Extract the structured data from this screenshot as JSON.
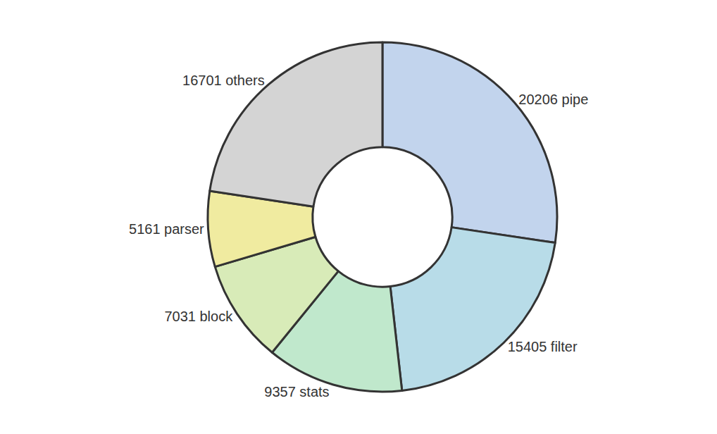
{
  "chart_data": {
    "type": "donut",
    "categories": [
      "20206 pipe",
      "15405 filter",
      "9357 stats",
      "7031 block",
      "5161 parser",
      "16701 others"
    ],
    "values": [
      20206,
      15405,
      9357,
      7031,
      5161,
      16701
    ],
    "colors": [
      "#c2d4ed",
      "#b8dce8",
      "#c0e8cc",
      "#d8ebb8",
      "#f0eba0",
      "#d4d4d4"
    ]
  }
}
